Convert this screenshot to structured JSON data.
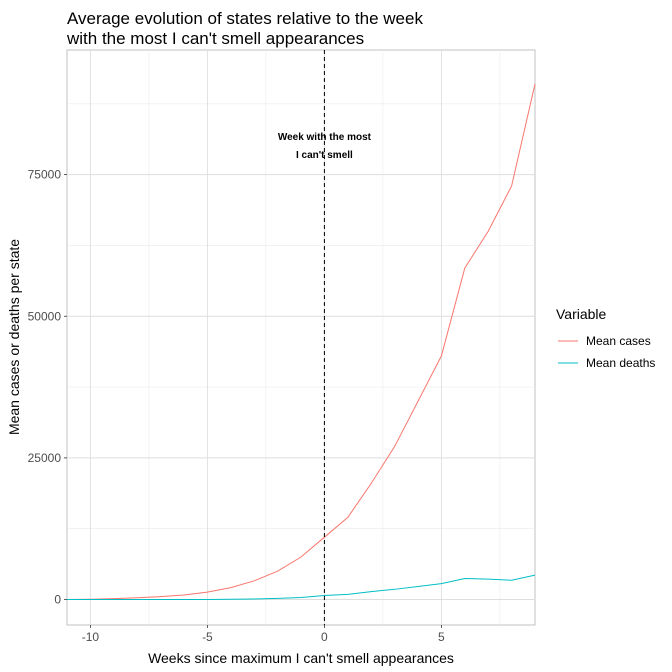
{
  "chart_data": {
    "type": "line",
    "title_lines": [
      "Average evolution of states relative to the week",
      "with the most I can't smell appearances"
    ],
    "xlabel": "Weeks since maximum I can't smell appearances",
    "ylabel": "Mean cases or deaths per state",
    "xlim": [
      -11,
      9
    ],
    "ylim": [
      -4500,
      97000
    ],
    "x_ticks": [
      -10,
      -5,
      0,
      5
    ],
    "x_tick_labels": [
      "-10",
      "-5",
      "0",
      "5"
    ],
    "y_ticks": [
      0,
      25000,
      50000,
      75000
    ],
    "y_tick_labels": [
      "0",
      "25000",
      "50000",
      "75000"
    ],
    "grid": true,
    "legend": {
      "title": "Variable",
      "position": "right"
    },
    "vline": {
      "x": 0,
      "style": "dashed"
    },
    "annotation": {
      "lines": [
        "Week with the most",
        "I can't smell"
      ],
      "x": 0,
      "y": 78500
    },
    "series": [
      {
        "name": "Mean cases",
        "color": "#F8766D",
        "x": [
          -11,
          -10,
          -9,
          -8,
          -7,
          -6,
          -5,
          -4,
          -3,
          -2,
          -1,
          0,
          1,
          2,
          3,
          4,
          5,
          6,
          7,
          8,
          9
        ],
        "y": [
          0,
          50,
          150,
          300,
          500,
          800,
          1300,
          2100,
          3300,
          5000,
          7500,
          11000,
          14500,
          20500,
          27000,
          35000,
          43000,
          58500,
          65000,
          73000,
          91000
        ]
      },
      {
        "name": "Mean deaths",
        "color": "#00BFC4",
        "x": [
          -11,
          -10,
          -9,
          -8,
          -7,
          -6,
          -5,
          -4,
          -3,
          -2,
          -1,
          0,
          1,
          2,
          3,
          4,
          5,
          6,
          7,
          8,
          9
        ],
        "y": [
          0,
          0,
          0,
          0,
          0,
          0,
          0,
          50,
          100,
          200,
          350,
          700,
          900,
          1400,
          1800,
          2300,
          2800,
          3700,
          3600,
          3400,
          4300
        ]
      }
    ]
  }
}
